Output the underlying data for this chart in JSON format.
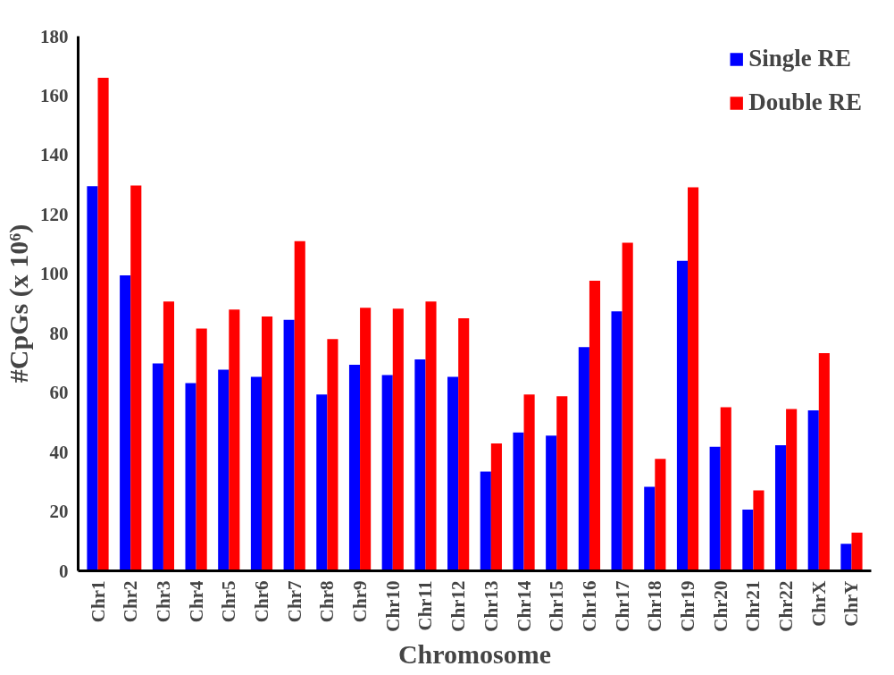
{
  "chart_data": {
    "type": "bar",
    "xlabel": "Chromosome",
    "ylabel": "#CpGs (x 10⁶)",
    "categories": [
      "Chr1",
      "Chr2",
      "Chr3",
      "Chr4",
      "Chr5",
      "Chr6",
      "Chr7",
      "Chr8",
      "Chr9",
      "Chr10",
      "Chr11",
      "Chr12",
      "Chr13",
      "Chr14",
      "Chr15",
      "Chr16",
      "Chr17",
      "Chr18",
      "Chr19",
      "Chr20",
      "Chr21",
      "Chr22",
      "ChrX",
      "ChrY"
    ],
    "series": [
      {
        "name": "Single RE",
        "color": "#0000ff",
        "values": [
          129.5,
          99.5,
          69.8,
          63.2,
          67.7,
          65.3,
          84.5,
          59.4,
          69.4,
          65.9,
          71.2,
          65.3,
          33.4,
          46.6,
          45.5,
          75.3,
          87.4,
          28.3,
          104.4,
          41.8,
          20.6,
          42.3,
          54,
          9.1
        ]
      },
      {
        "name": "Double RE",
        "color": "#ff0000",
        "values": [
          166,
          129.7,
          90.7,
          81.6,
          88,
          85.6,
          111,
          78,
          88.6,
          88.3,
          90.7,
          85,
          42.9,
          59.4,
          58.8,
          97.7,
          110.5,
          37.7,
          129.1,
          55.1,
          27.1,
          54.5,
          73.3,
          12.9
        ]
      }
    ],
    "ylim": [
      0,
      180
    ],
    "yticks": [
      0,
      20,
      40,
      60,
      80,
      100,
      120,
      140,
      160,
      180
    ],
    "grid": false,
    "legend": "top right"
  }
}
